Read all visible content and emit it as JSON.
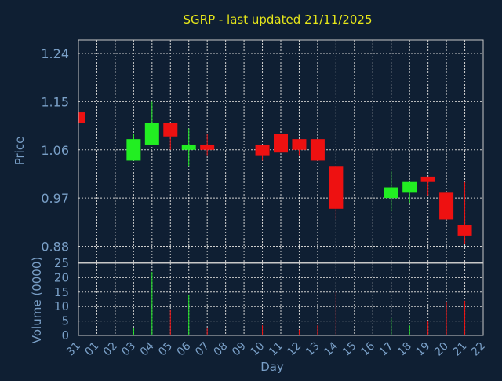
{
  "chart_data": {
    "type": "candlestick",
    "title": "SGRP - last updated 21/11/2025",
    "xlabel": "Day",
    "ylabel": "Price",
    "volume_label": "Volume (0000)",
    "x_ticks": [
      "31",
      "01",
      "02",
      "03",
      "04",
      "05",
      "06",
      "07",
      "08",
      "09",
      "10",
      "11",
      "12",
      "13",
      "14",
      "15",
      "16",
      "17",
      "18",
      "19",
      "20",
      "21",
      "22"
    ],
    "y_ticks": [
      0.88,
      0.97,
      1.06,
      1.15,
      1.24
    ],
    "y_tick_labels": [
      "0.88",
      "0.97",
      "1.06",
      "1.15",
      "1.24"
    ],
    "ylim": [
      0.85,
      1.265
    ],
    "volume_ticks": [
      0,
      5,
      10,
      15,
      20,
      25
    ],
    "volume_ylim": [
      0,
      25
    ],
    "grid": true,
    "colors": {
      "up": "#22ee22",
      "down": "#ee1111",
      "title": "#e6e61a",
      "axis_text": "#7aa0c8",
      "background": "#0f1f33"
    },
    "candles": [
      {
        "day": "31",
        "open": 1.13,
        "close": 1.11,
        "high": 1.13,
        "low": 1.11,
        "volume": 0
      },
      {
        "day": "03",
        "open": 1.04,
        "close": 1.08,
        "high": 1.09,
        "low": 1.04,
        "volume": 2.5
      },
      {
        "day": "04",
        "open": 1.07,
        "close": 1.11,
        "high": 1.15,
        "low": 1.07,
        "volume": 22
      },
      {
        "day": "05",
        "open": 1.11,
        "close": 1.085,
        "high": 1.11,
        "low": 1.06,
        "volume": 9
      },
      {
        "day": "06",
        "open": 1.06,
        "close": 1.07,
        "high": 1.1,
        "low": 1.03,
        "volume": 14
      },
      {
        "day": "07",
        "open": 1.07,
        "close": 1.06,
        "high": 1.09,
        "low": 1.05,
        "volume": 2.5
      },
      {
        "day": "10",
        "open": 1.07,
        "close": 1.05,
        "high": 1.07,
        "low": 1.04,
        "volume": 3.5
      },
      {
        "day": "11",
        "open": 1.09,
        "close": 1.055,
        "high": 1.09,
        "low": 1.055,
        "volume": 0
      },
      {
        "day": "12",
        "open": 1.08,
        "close": 1.06,
        "high": 1.08,
        "low": 1.05,
        "volume": 2
      },
      {
        "day": "13",
        "open": 1.08,
        "close": 1.04,
        "high": 1.08,
        "low": 1.04,
        "volume": 3.5
      },
      {
        "day": "14",
        "open": 1.03,
        "close": 0.95,
        "high": 1.03,
        "low": 0.93,
        "volume": 15
      },
      {
        "day": "17",
        "open": 0.97,
        "close": 0.99,
        "high": 1.02,
        "low": 0.945,
        "volume": 6
      },
      {
        "day": "18",
        "open": 0.98,
        "close": 1.0,
        "high": 1.0,
        "low": 0.96,
        "volume": 3.5
      },
      {
        "day": "19",
        "open": 1.01,
        "close": 1.0,
        "high": 1.01,
        "low": 0.975,
        "volume": 5
      },
      {
        "day": "20",
        "open": 0.98,
        "close": 0.93,
        "high": 0.98,
        "low": 0.93,
        "volume": 11.5
      },
      {
        "day": "21",
        "open": 0.92,
        "close": 0.9,
        "high": 1.0,
        "low": 0.885,
        "volume": 12
      }
    ]
  }
}
